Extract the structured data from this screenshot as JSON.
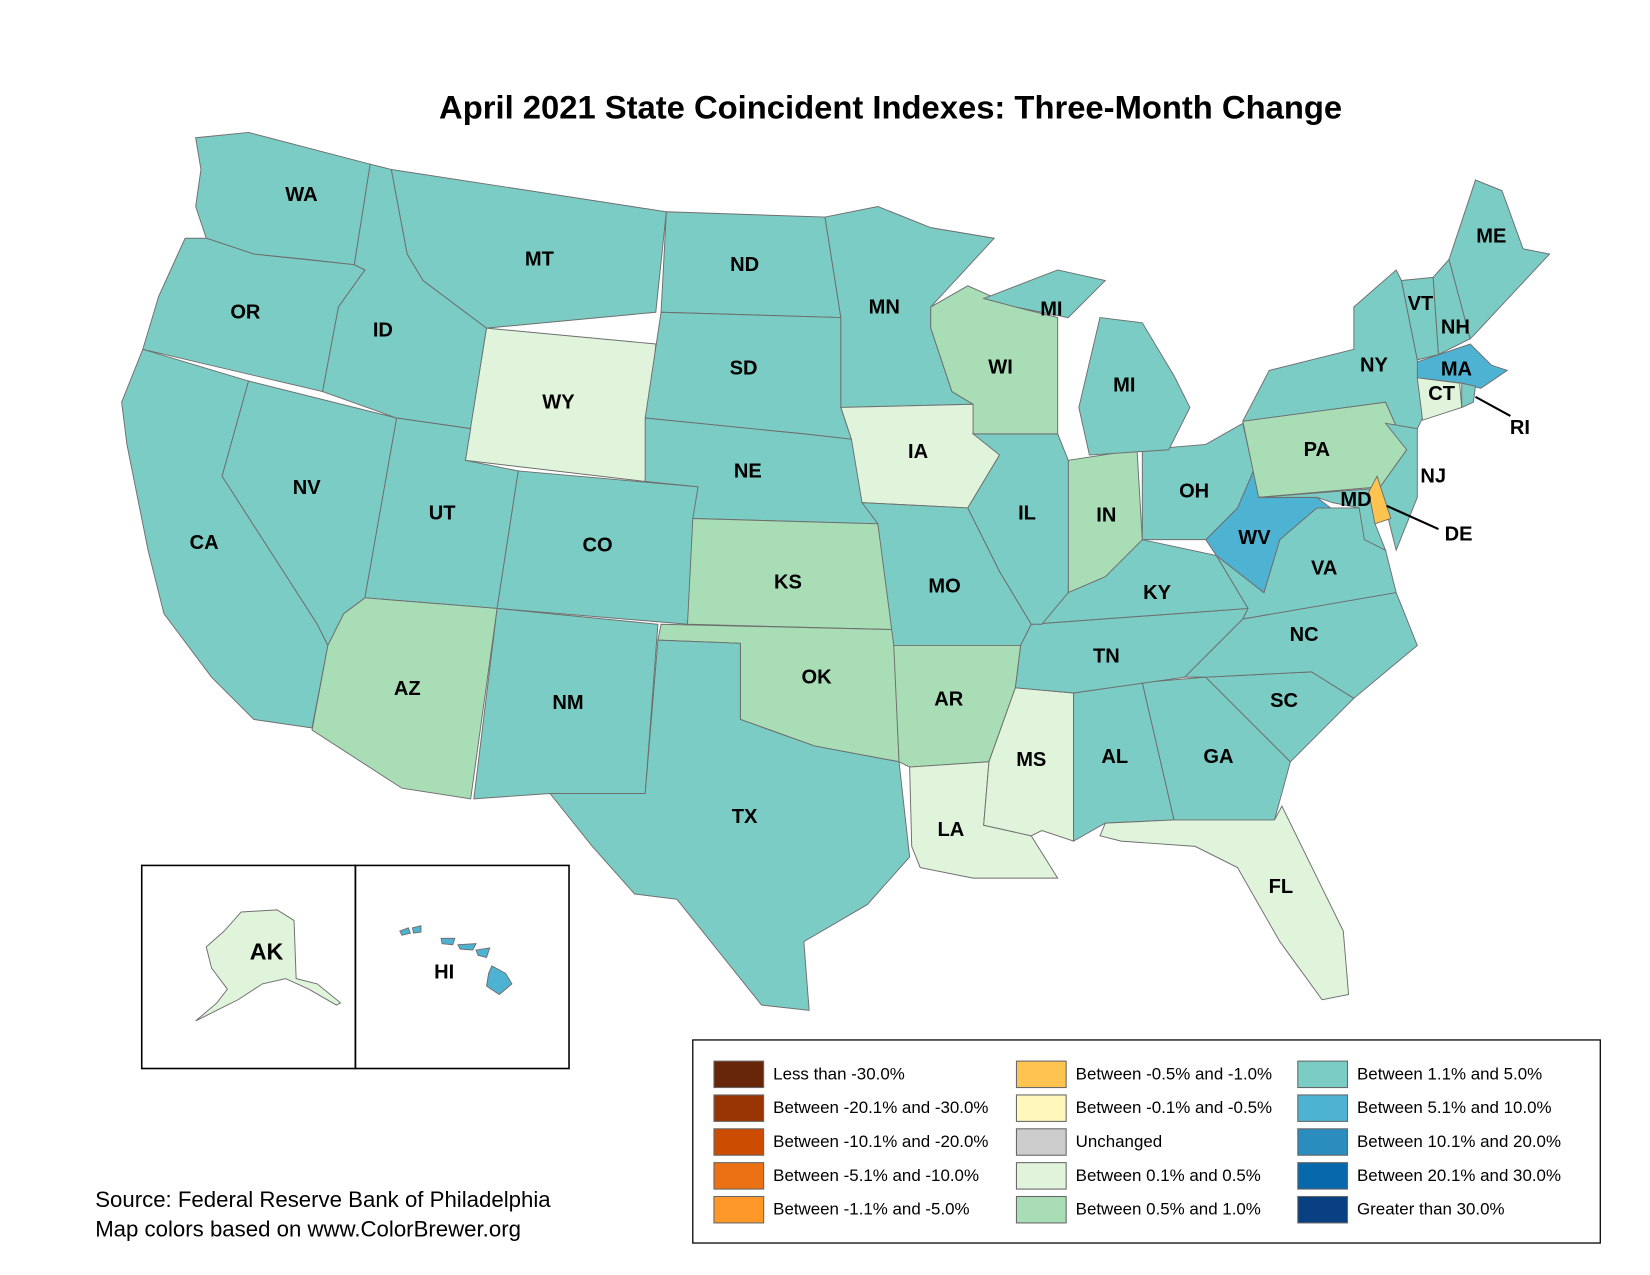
{
  "title": "April 2021 State Coincident Indexes: Three-Month Change",
  "source": [
    "Source: Federal Reserve Bank of Philadelphia",
    "Map colors based on www.ColorBrewer.org"
  ],
  "legend": [
    {
      "label": "Less than -30.0%",
      "color": "#67250a"
    },
    {
      "label": "Between -20.1% and -30.0%",
      "color": "#993404"
    },
    {
      "label": "Between -10.1% and -20.0%",
      "color": "#cc4c02"
    },
    {
      "label": "Between -5.1% and -10.0%",
      "color": "#ec7014"
    },
    {
      "label": "Between -1.1% and -5.0%",
      "color": "#fe9929"
    },
    {
      "label": "Between -0.5% and -1.0%",
      "color": "#fec44f"
    },
    {
      "label": "Between -0.1% and -0.5%",
      "color": "#fff7bc"
    },
    {
      "label": "Unchanged",
      "color": "#cccccc"
    },
    {
      "label": "Between 0.1% and 0.5%",
      "color": "#e0f3db"
    },
    {
      "label": "Between 0.5% and 1.0%",
      "color": "#a8ddb5"
    },
    {
      "label": "Between 1.1% and 5.0%",
      "color": "#7bccc4"
    },
    {
      "label": "Between 5.1% and 10.0%",
      "color": "#4eb3d3"
    },
    {
      "label": "Between 10.1% and 20.0%",
      "color": "#2b8cbe"
    },
    {
      "label": "Between 20.1% and 30.0%",
      "color": "#0868ac"
    },
    {
      "label": "Greater than 30.0%",
      "color": "#084081"
    }
  ],
  "states": {
    "WA": {
      "label": "WA",
      "category": 10
    },
    "OR": {
      "label": "OR",
      "category": 10
    },
    "CA": {
      "label": "CA",
      "category": 10
    },
    "NV": {
      "label": "NV",
      "category": 10
    },
    "ID": {
      "label": "ID",
      "category": 10
    },
    "MT": {
      "label": "MT",
      "category": 10
    },
    "WY": {
      "label": "WY",
      "category": 8
    },
    "UT": {
      "label": "UT",
      "category": 10
    },
    "CO": {
      "label": "CO",
      "category": 10
    },
    "AZ": {
      "label": "AZ",
      "category": 9
    },
    "NM": {
      "label": "NM",
      "category": 10
    },
    "ND": {
      "label": "ND",
      "category": 10
    },
    "SD": {
      "label": "SD",
      "category": 10
    },
    "NE": {
      "label": "NE",
      "category": 10
    },
    "KS": {
      "label": "KS",
      "category": 9
    },
    "OK": {
      "label": "OK",
      "category": 9
    },
    "TX": {
      "label": "TX",
      "category": 10
    },
    "MN": {
      "label": "MN",
      "category": 10
    },
    "IA": {
      "label": "IA",
      "category": 8
    },
    "MO": {
      "label": "MO",
      "category": 10
    },
    "AR": {
      "label": "AR",
      "category": 9
    },
    "LA": {
      "label": "LA",
      "category": 8
    },
    "MS": {
      "label": "MS",
      "category": 8
    },
    "AL": {
      "label": "AL",
      "category": 10
    },
    "GA": {
      "label": "GA",
      "category": 10
    },
    "FL": {
      "label": "FL",
      "category": 8
    },
    "SC": {
      "label": "SC",
      "category": 10
    },
    "NC": {
      "label": "NC",
      "category": 10
    },
    "TN": {
      "label": "TN",
      "category": 10
    },
    "KY": {
      "label": "KY",
      "category": 10
    },
    "VA": {
      "label": "VA",
      "category": 10
    },
    "WV": {
      "label": "WV",
      "category": 11
    },
    "OH": {
      "label": "OH",
      "category": 10
    },
    "IN": {
      "label": "IN",
      "category": 9
    },
    "IL": {
      "label": "IL",
      "category": 10
    },
    "WI": {
      "label": "WI",
      "category": 9
    },
    "MI": {
      "label": "MI",
      "category": 10
    },
    "PA": {
      "label": "PA",
      "category": 9
    },
    "NY": {
      "label": "NY",
      "category": 10
    },
    "NJ": {
      "label": "NJ",
      "category": 10
    },
    "DE": {
      "label": "DE",
      "category": 5
    },
    "MD": {
      "label": "MD",
      "category": 10
    },
    "VT": {
      "label": "VT",
      "category": 10
    },
    "NH": {
      "label": "NH",
      "category": 10
    },
    "ME": {
      "label": "ME",
      "category": 10
    },
    "MA": {
      "label": "MA",
      "category": 11
    },
    "CT": {
      "label": "CT",
      "category": 8
    },
    "RI": {
      "label": "RI",
      "category": 10
    },
    "AK": {
      "label": "AK",
      "category": 8
    },
    "HI": {
      "label": "HI",
      "category": 11
    }
  }
}
